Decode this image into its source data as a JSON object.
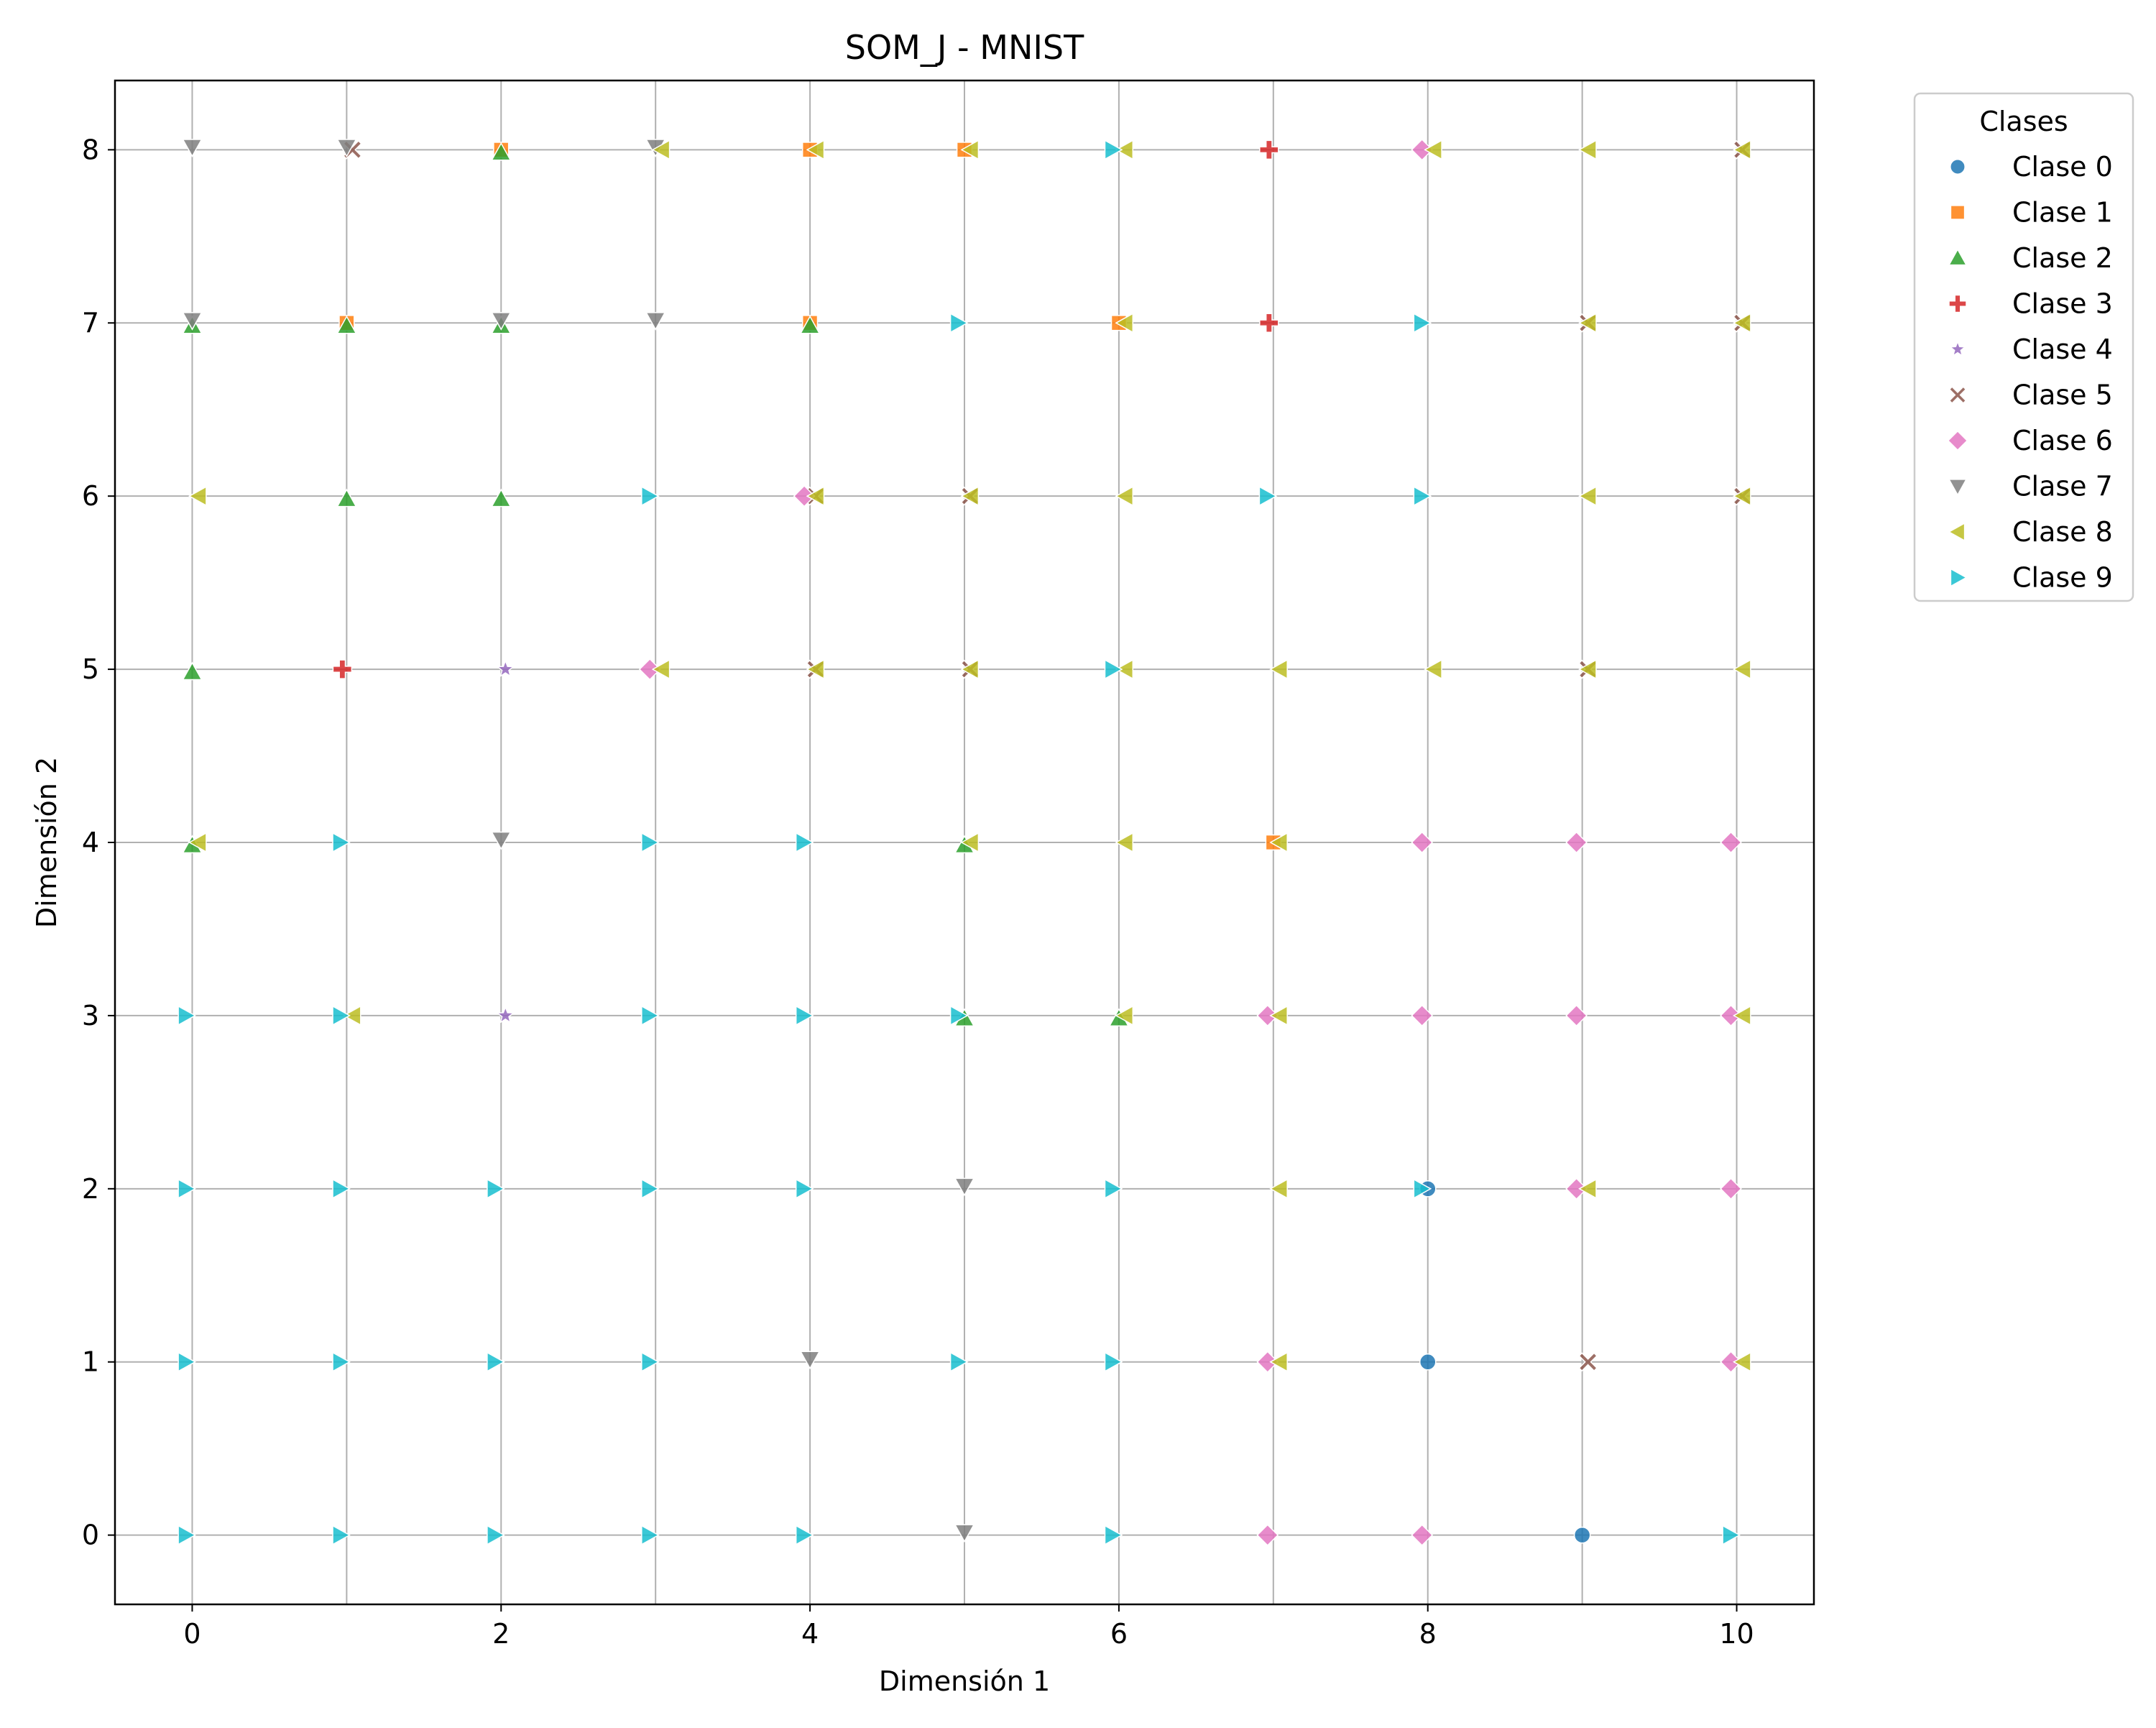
{
  "chart_data": {
    "type": "scatter",
    "title": "SOM_J - MNIST",
    "xlabel": "Dimensión 1",
    "ylabel": "Dimensión 2",
    "xlim": [
      -0.5,
      10.5
    ],
    "ylim": [
      -0.4,
      8.4
    ],
    "xticks": [
      0,
      2,
      4,
      6,
      8,
      10
    ],
    "yticks": [
      0,
      1,
      2,
      3,
      4,
      5,
      6,
      7,
      8
    ],
    "grid": true,
    "legend": {
      "title": "Clases",
      "placement": "outside-right",
      "entries": [
        "Clase 0",
        "Clase 1",
        "Clase 2",
        "Clase 3",
        "Clase 4",
        "Clase 5",
        "Clase 6",
        "Clase 7",
        "Clase 8",
        "Clase 9"
      ]
    },
    "series": [
      {
        "name": "Clase 0",
        "marker": "circle",
        "color": "#1f77b4",
        "points": [
          [
            8,
            1
          ],
          [
            9,
            0
          ],
          [
            8,
            2
          ]
        ]
      },
      {
        "name": "Clase 1",
        "marker": "square",
        "color": "#ff7f0e",
        "points": [
          [
            2,
            8
          ],
          [
            4,
            8
          ],
          [
            5,
            8
          ],
          [
            1,
            7
          ],
          [
            4,
            7
          ],
          [
            6,
            7
          ],
          [
            7,
            4
          ]
        ]
      },
      {
        "name": "Clase 2",
        "marker": "triangle-up",
        "color": "#2ca02c",
        "points": [
          [
            2,
            8
          ],
          [
            0,
            7
          ],
          [
            1,
            7
          ],
          [
            2,
            7
          ],
          [
            4,
            7
          ],
          [
            1,
            6
          ],
          [
            2,
            6
          ],
          [
            0,
            5
          ],
          [
            0,
            4
          ],
          [
            5,
            4
          ],
          [
            5,
            3
          ],
          [
            6,
            3
          ]
        ]
      },
      {
        "name": "Clase 3",
        "marker": "plus",
        "color": "#d62728",
        "points": [
          [
            7,
            8
          ],
          [
            7,
            7
          ],
          [
            1,
            5
          ]
        ]
      },
      {
        "name": "Clase 4",
        "marker": "star",
        "color": "#9467bd",
        "points": [
          [
            2,
            5
          ],
          [
            2,
            3
          ]
        ]
      },
      {
        "name": "Clase 5",
        "marker": "x",
        "color": "#8c564b",
        "points": [
          [
            1,
            8
          ],
          [
            4,
            6
          ],
          [
            5,
            6
          ],
          [
            4,
            5
          ],
          [
            5,
            5
          ],
          [
            9,
            5
          ],
          [
            10,
            6
          ],
          [
            10,
            7
          ],
          [
            9,
            7
          ],
          [
            10,
            8
          ],
          [
            9,
            1
          ]
        ]
      },
      {
        "name": "Clase 6",
        "marker": "diamond",
        "color": "#e377c2",
        "points": [
          [
            3,
            5
          ],
          [
            4,
            6
          ],
          [
            8,
            8
          ],
          [
            8,
            4
          ],
          [
            9,
            4
          ],
          [
            10,
            4
          ],
          [
            7,
            3
          ],
          [
            8,
            3
          ],
          [
            9,
            3
          ],
          [
            10,
            3
          ],
          [
            9,
            2
          ],
          [
            10,
            2
          ],
          [
            7,
            1
          ],
          [
            10,
            1
          ],
          [
            7,
            0
          ],
          [
            8,
            0
          ]
        ]
      },
      {
        "name": "Clase 7",
        "marker": "triangle-down",
        "color": "#7f7f7f",
        "points": [
          [
            0,
            8
          ],
          [
            1,
            8
          ],
          [
            3,
            8
          ],
          [
            0,
            7
          ],
          [
            2,
            7
          ],
          [
            3,
            7
          ],
          [
            2,
            4
          ],
          [
            5,
            2
          ],
          [
            4,
            1
          ],
          [
            5,
            0
          ]
        ]
      },
      {
        "name": "Clase 8",
        "marker": "triangle-left",
        "color": "#bcbd22",
        "points": [
          [
            3,
            8
          ],
          [
            4,
            8
          ],
          [
            5,
            8
          ],
          [
            6,
            8
          ],
          [
            8,
            8
          ],
          [
            9,
            8
          ],
          [
            10,
            8
          ],
          [
            6,
            7
          ],
          [
            9,
            7
          ],
          [
            10,
            7
          ],
          [
            0,
            6
          ],
          [
            4,
            6
          ],
          [
            5,
            6
          ],
          [
            6,
            6
          ],
          [
            9,
            6
          ],
          [
            10,
            6
          ],
          [
            3,
            5
          ],
          [
            4,
            5
          ],
          [
            5,
            5
          ],
          [
            6,
            5
          ],
          [
            7,
            5
          ],
          [
            8,
            5
          ],
          [
            9,
            5
          ],
          [
            10,
            5
          ],
          [
            0,
            4
          ],
          [
            5,
            4
          ],
          [
            6,
            4
          ],
          [
            7,
            4
          ],
          [
            1,
            3
          ],
          [
            6,
            3
          ],
          [
            7,
            3
          ],
          [
            10,
            3
          ],
          [
            7,
            2
          ],
          [
            9,
            2
          ],
          [
            7,
            1
          ],
          [
            10,
            1
          ]
        ]
      },
      {
        "name": "Clase 9",
        "marker": "triangle-right",
        "color": "#17becf",
        "points": [
          [
            6,
            8
          ],
          [
            5,
            7
          ],
          [
            8,
            7
          ],
          [
            3,
            6
          ],
          [
            7,
            6
          ],
          [
            8,
            6
          ],
          [
            6,
            5
          ],
          [
            1,
            4
          ],
          [
            3,
            4
          ],
          [
            4,
            4
          ],
          [
            0,
            3
          ],
          [
            1,
            3
          ],
          [
            3,
            3
          ],
          [
            4,
            3
          ],
          [
            5,
            3
          ],
          [
            0,
            2
          ],
          [
            1,
            2
          ],
          [
            2,
            2
          ],
          [
            3,
            2
          ],
          [
            4,
            2
          ],
          [
            6,
            2
          ],
          [
            8,
            2
          ],
          [
            0,
            1
          ],
          [
            1,
            1
          ],
          [
            2,
            1
          ],
          [
            3,
            1
          ],
          [
            5,
            1
          ],
          [
            6,
            1
          ],
          [
            0,
            0
          ],
          [
            1,
            0
          ],
          [
            2,
            0
          ],
          [
            3,
            0
          ],
          [
            4,
            0
          ],
          [
            6,
            0
          ],
          [
            10,
            0
          ]
        ]
      }
    ]
  }
}
